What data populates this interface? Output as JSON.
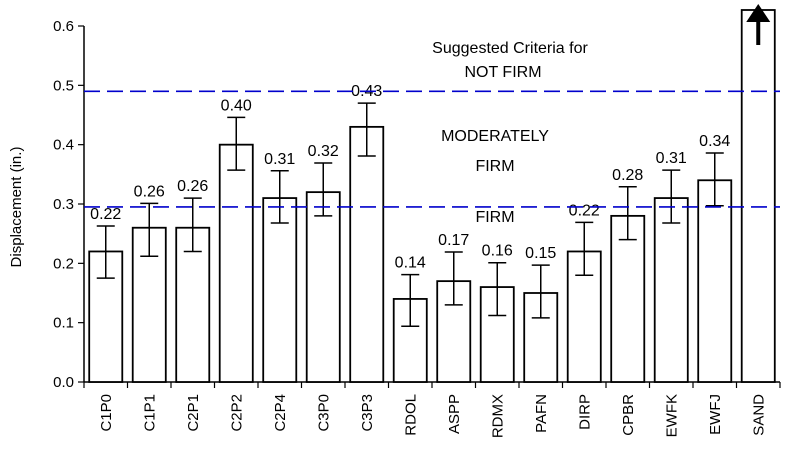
{
  "chart_data": {
    "type": "bar",
    "xlabel": "",
    "ylabel": "Displacement (in.)",
    "ylim": [
      0,
      0.6
    ],
    "yticks": [
      "0.0",
      "0.1",
      "0.2",
      "0.3",
      "0.4",
      "0.5",
      "0.6"
    ],
    "grid": false,
    "legend": "none",
    "categories": [
      "C1P0",
      "C1P1",
      "C2P1",
      "C2P2",
      "C2P4",
      "C3P0",
      "C3P3",
      "RDOL",
      "ASPP",
      "RDMX",
      "PAFN",
      "DIRP",
      "CPBR",
      "EWFK",
      "EWFJ",
      "SAND"
    ],
    "values": [
      0.22,
      0.26,
      0.26,
      0.4,
      0.31,
      0.32,
      0.43,
      0.14,
      0.17,
      0.16,
      0.15,
      0.22,
      0.28,
      0.31,
      0.34,
      null
    ],
    "data_labels": [
      "0.22",
      "0.26",
      "0.26",
      "0.40",
      "0.31",
      "0.32",
      "0.43",
      "0.14",
      "0.17",
      "0.16",
      "0.15",
      "0.22",
      "0.28",
      "0.31",
      "0.34",
      ""
    ],
    "error_bars": {
      "low": [
        0.175,
        0.212,
        0.22,
        0.357,
        0.268,
        0.28,
        0.381,
        0.094,
        0.13,
        0.112,
        0.108,
        0.18,
        0.24,
        0.268,
        0.297,
        null
      ],
      "high": [
        0.263,
        0.301,
        0.31,
        0.446,
        0.356,
        0.369,
        0.47,
        0.181,
        0.219,
        0.201,
        0.197,
        0.269,
        0.329,
        0.357,
        0.386,
        null
      ]
    },
    "off_scale_category": "SAND",
    "reference_lines": [
      {
        "y": 0.49,
        "color": "#0000cc",
        "style": "dashed"
      },
      {
        "y": 0.295,
        "color": "#0000cc",
        "style": "dashed"
      }
    ],
    "annotations": {
      "not_firm_line1": "Suggested Criteria for",
      "not_firm_line2": "NOT FIRM",
      "moderately_line1": "MODERATELY",
      "moderately_line2": "FIRM",
      "firm": "FIRM"
    },
    "colors": {
      "bar_fill": "#ffffff",
      "bar_stroke": "#000000",
      "reference_line": "#0000cc",
      "text": "#000000"
    }
  }
}
